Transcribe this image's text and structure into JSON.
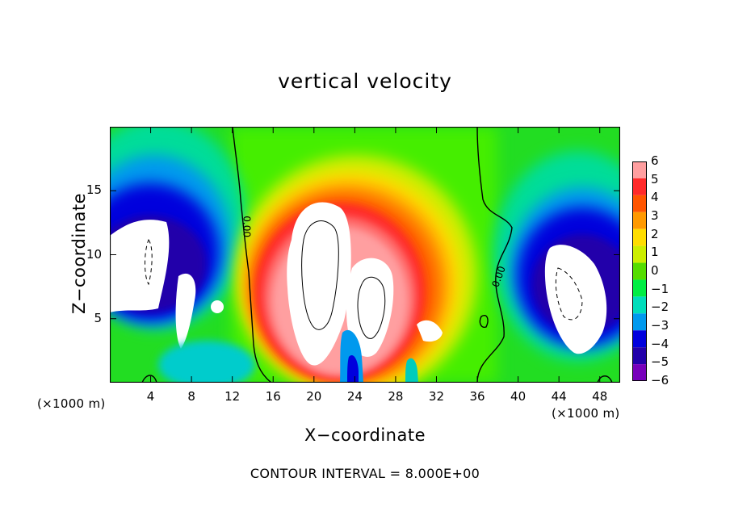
{
  "chart_data": {
    "type": "heatmap",
    "title": "vertical velocity",
    "xlabel": "X−coordinate",
    "ylabel": "Z−coordinate",
    "x_unit_left": "(×1000 m)",
    "x_unit_right": "(×1000 m)",
    "footer": "CONTOUR INTERVAL = 8.000E+00",
    "xlim": [
      0,
      50
    ],
    "ylim": [
      0,
      20
    ],
    "x_ticks": [
      4,
      8,
      12,
      16,
      20,
      24,
      28,
      32,
      36,
      40,
      44,
      48
    ],
    "x_tick_labels": [
      "4",
      "8",
      "12",
      "16",
      "20",
      "24",
      "28",
      "32",
      "36",
      "40",
      "44",
      "48"
    ],
    "y_ticks": [
      5,
      10,
      15
    ],
    "y_tick_labels": [
      "5",
      "10",
      "15"
    ],
    "colorbar": {
      "range": [
        -6,
        6
      ],
      "tick_values": [
        6,
        5,
        4,
        3,
        2,
        1,
        0,
        -1,
        -2,
        -3,
        -4,
        -5,
        -6
      ],
      "tick_labels": [
        "6",
        "5",
        "4",
        "3",
        "2",
        "1",
        "0",
        "−1",
        "−2",
        "−3",
        "−4",
        "−5",
        "−6"
      ],
      "colors": [
        "#ff9fa0",
        "#ff2a2a",
        "#ff5500",
        "#ff9900",
        "#ffdd00",
        "#ccee00",
        "#55dd00",
        "#00ee44",
        "#00ddbb",
        "#0099ee",
        "#0000dd",
        "#2200aa",
        "#7700bb"
      ]
    },
    "contour_labels": [
      {
        "text": "0.00",
        "x": 13.1,
        "y": 12.2,
        "rotate": 90
      },
      {
        "text": "0.00",
        "x": 38.4,
        "y": 8.2,
        "rotate": -70
      }
    ],
    "features": [
      {
        "kind": "updraft",
        "center_x": 20.5,
        "center_z": 8.5,
        "peak_w": 12
      },
      {
        "kind": "updraft",
        "center_x": 26.5,
        "center_z": 6.5,
        "peak_w": 10
      },
      {
        "kind": "updraft",
        "center_x": 31.5,
        "center_z": 4.0,
        "peak_w": 8
      },
      {
        "kind": "downdraft",
        "center_x": 3.5,
        "center_z": 9.5,
        "peak_w": -12
      },
      {
        "kind": "downdraft",
        "center_x": 7.5,
        "center_z": 6.0,
        "peak_w": -9
      },
      {
        "kind": "downdraft",
        "center_x": 45.5,
        "center_z": 7.5,
        "peak_w": -12
      },
      {
        "kind": "downdraft",
        "center_x": 24.0,
        "center_z": 2.0,
        "peak_w": -6
      },
      {
        "kind": "downdraft",
        "center_x": 29.8,
        "center_z": 1.5,
        "peak_w": -4
      }
    ]
  }
}
